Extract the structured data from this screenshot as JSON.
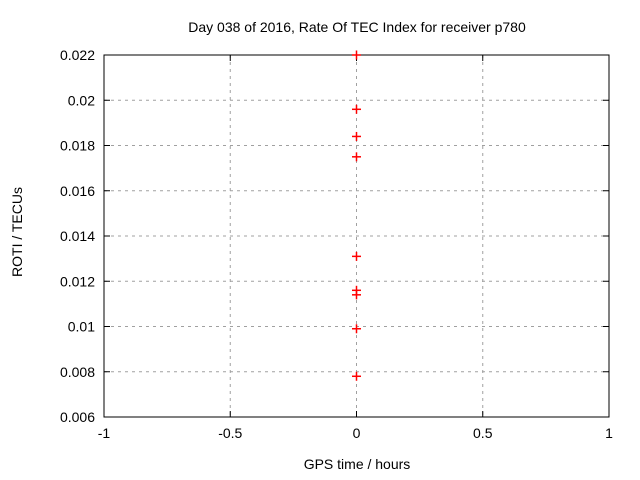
{
  "chart_data": {
    "type": "scatter",
    "title": "Day 038 of 2016, Rate Of TEC Index for receiver p780",
    "xlabel": "GPS time / hours",
    "ylabel": "ROTI / TECUs",
    "xlim": [
      -1,
      1
    ],
    "ylim": [
      0.006,
      0.022
    ],
    "xticks": {
      "values": [
        -1,
        -0.5,
        0,
        0.5,
        1
      ],
      "labels": [
        "-1",
        "-0.5",
        "0",
        "0.5",
        "1"
      ]
    },
    "yticks": {
      "values": [
        0.006,
        0.008,
        0.01,
        0.012,
        0.014,
        0.016,
        0.018,
        0.02,
        0.022
      ],
      "labels": [
        "0.006",
        "0.008",
        "0.01",
        "0.012",
        "0.014",
        "0.016",
        "0.018",
        "0.02",
        "0.022"
      ]
    },
    "grid": true,
    "legend": false,
    "marker": {
      "shape": "plus",
      "size": 9
    },
    "colors": {
      "background": "#ffffff",
      "axis": "#000000",
      "grid": "#a0a0a0",
      "text": "#000000",
      "marker": "#ff0000"
    },
    "series": [
      {
        "name": "ROTI",
        "x": [
          0,
          0,
          0,
          0,
          0,
          0,
          0,
          0,
          0
        ],
        "y": [
          0.022,
          0.0196,
          0.0184,
          0.0175,
          0.0131,
          0.0116,
          0.0114,
          0.0099,
          0.0078
        ]
      }
    ]
  }
}
